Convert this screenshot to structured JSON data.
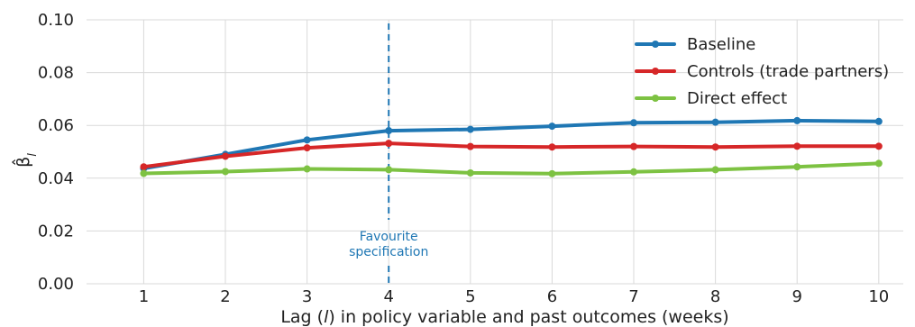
{
  "chart_data": {
    "type": "line",
    "title": "",
    "xlabel": "Lag (l) in policy variable and past outcomes (weeks)",
    "xlabel_parts": [
      "Lag (",
      "l",
      ") in policy variable and past outcomes (weeks)"
    ],
    "ylabel": "β̂l",
    "ylabel_base": "β̂",
    "ylabel_sub": "l",
    "x": [
      1,
      2,
      3,
      4,
      5,
      6,
      7,
      8,
      9,
      10
    ],
    "x_tick_labels": [
      "1",
      "2",
      "3",
      "4",
      "5",
      "6",
      "7",
      "8",
      "9",
      "10"
    ],
    "xlim": [
      0.3,
      10.3
    ],
    "ylim": [
      0,
      0.1
    ],
    "y_ticks": [
      0,
      0.02,
      0.04,
      0.06,
      0.08,
      0.1
    ],
    "y_tick_labels": [
      "0.00",
      "0.02",
      "0.04",
      "0.06",
      "0.08",
      "0.10"
    ],
    "grid": true,
    "legend_position": "top-right",
    "series": [
      {
        "name": "Baseline",
        "color": "#1f77b4",
        "values": [
          0.0437,
          0.049,
          0.0545,
          0.058,
          0.0585,
          0.0597,
          0.061,
          0.0612,
          0.0618,
          0.0615
        ]
      },
      {
        "name": "Controls (trade partners)",
        "color": "#d62728",
        "values": [
          0.0443,
          0.0483,
          0.0515,
          0.0532,
          0.052,
          0.0518,
          0.052,
          0.0518,
          0.0521,
          0.0521
        ]
      },
      {
        "name": "Direct effect",
        "color": "#7dc242",
        "values": [
          0.0418,
          0.0425,
          0.0435,
          0.0432,
          0.042,
          0.0417,
          0.0424,
          0.0432,
          0.0443,
          0.0456
        ]
      }
    ],
    "annotations": [
      {
        "type": "vertical-dashed-line",
        "x": 4,
        "color": "#1f77b4",
        "text_lines": [
          "Favourite",
          "specification"
        ]
      }
    ]
  }
}
